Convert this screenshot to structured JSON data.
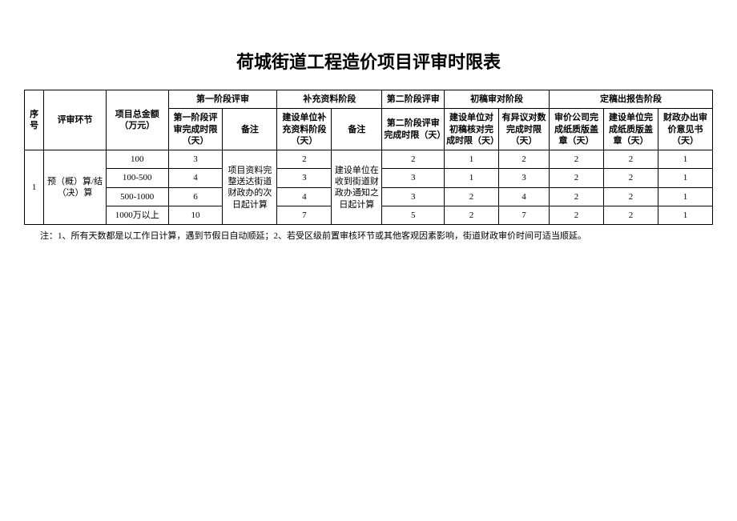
{
  "title": "荷城街道工程造价项目评审时限表",
  "headers": {
    "seq": "序号",
    "stage": "评审环节",
    "amount": "项目总金额（万元）",
    "phase1": "第一阶段评审",
    "phase1_a": "第一阶段评审完成时限（天）",
    "phase1_b": "备注",
    "phase2": "补充资料阶段",
    "phase2_a": "建设单位补充资料阶段（天）",
    "phase2_b": "备注",
    "phase3": "第二阶段评审",
    "phase3_a": "第二阶段评审完成时限（天）",
    "phase4": "初稿审对阶段",
    "phase4_a": "建设单位对初稿核对完成时限（天）",
    "phase4_b": "有异议对数完成时限（天）",
    "phase5": "定稿出报告阶段",
    "phase5_a": "审价公司完成纸质版盖章（天）",
    "phase5_b": "建设单位完成纸质版盖章（天）",
    "phase5_c": "财政办出审价意见书（天）"
  },
  "rows": [
    {
      "seq": "1",
      "stage": "预（概）算/结（决）算",
      "amount": "100",
      "p1a": "3",
      "p1b_merged": "项目资料完整送达街道财政办的次日起计算",
      "p2a": "2",
      "p2b_merged": "建设单位在收到街道财政办通知之日起计算",
      "p3": "2",
      "p4a": "1",
      "p4b": "2",
      "p5a": "2",
      "p5b": "2",
      "p5c": "1"
    },
    {
      "amount": "100-500",
      "p1a": "4",
      "p2a": "3",
      "p3": "3",
      "p4a": "1",
      "p4b": "3",
      "p5a": "2",
      "p5b": "2",
      "p5c": "1"
    },
    {
      "amount": "500-1000",
      "p1a": "6",
      "p2a": "4",
      "p3": "3",
      "p4a": "2",
      "p4b": "4",
      "p5a": "2",
      "p5b": "2",
      "p5c": "1"
    },
    {
      "amount": "1000万以上",
      "p1a": "10",
      "p2a": "7",
      "p3": "5",
      "p4a": "2",
      "p4b": "7",
      "p5a": "2",
      "p5b": "2",
      "p5c": "1"
    }
  ],
  "note": "注：1、所有天数都是以工作日计算，遇到节假日自动顺延；2、若受区级前置审核环节或其他客观因素影响，街道财政审价时间可适当顺延。"
}
